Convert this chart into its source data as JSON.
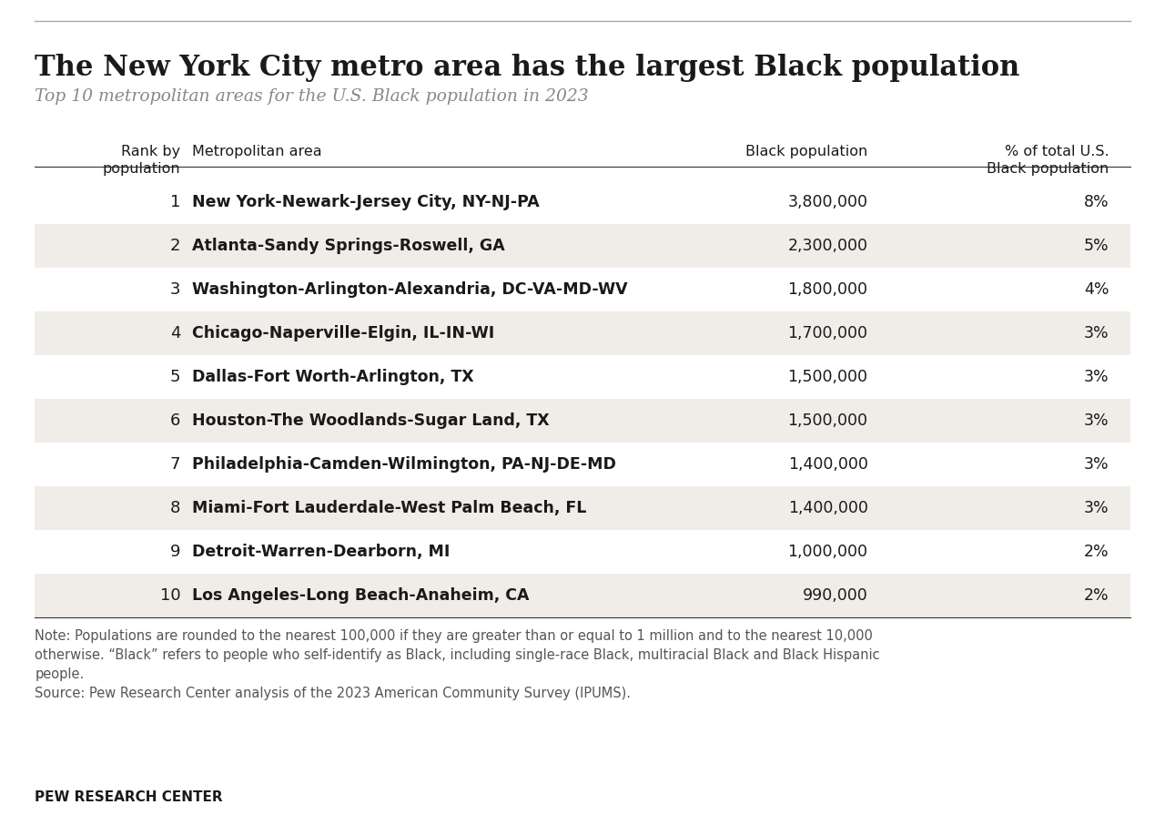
{
  "title": "The New York City metro area has the largest Black population",
  "subtitle": "Top 10 metropolitan areas for the U.S. Black population in 2023",
  "col_headers": {
    "rank": "Rank by\npopulation",
    "metro": "Metropolitan area",
    "pop": "Black population",
    "pct": "% of total U.S.\nBlack population"
  },
  "rows": [
    {
      "rank": 1,
      "metro": "New York-Newark-Jersey City, NY-NJ-PA",
      "pop": "3,800,000",
      "pct": "8%",
      "shaded": false
    },
    {
      "rank": 2,
      "metro": "Atlanta-Sandy Springs-Roswell, GA",
      "pop": "2,300,000",
      "pct": "5%",
      "shaded": true
    },
    {
      "rank": 3,
      "metro": "Washington-Arlington-Alexandria, DC-VA-MD-WV",
      "pop": "1,800,000",
      "pct": "4%",
      "shaded": false
    },
    {
      "rank": 4,
      "metro": "Chicago-Naperville-Elgin, IL-IN-WI",
      "pop": "1,700,000",
      "pct": "3%",
      "shaded": true
    },
    {
      "rank": 5,
      "metro": "Dallas-Fort Worth-Arlington, TX",
      "pop": "1,500,000",
      "pct": "3%",
      "shaded": false
    },
    {
      "rank": 6,
      "metro": "Houston-The Woodlands-Sugar Land, TX",
      "pop": "1,500,000",
      "pct": "3%",
      "shaded": true
    },
    {
      "rank": 7,
      "metro": "Philadelphia-Camden-Wilmington, PA-NJ-DE-MD",
      "pop": "1,400,000",
      "pct": "3%",
      "shaded": false
    },
    {
      "rank": 8,
      "metro": "Miami-Fort Lauderdale-West Palm Beach, FL",
      "pop": "1,400,000",
      "pct": "3%",
      "shaded": true
    },
    {
      "rank": 9,
      "metro": "Detroit-Warren-Dearborn, MI",
      "pop": "1,000,000",
      "pct": "2%",
      "shaded": false
    },
    {
      "rank": 10,
      "metro": "Los Angeles-Long Beach-Anaheim, CA",
      "pop": "990,000",
      "pct": "2%",
      "shaded": true
    }
  ],
  "note": "Note: Populations are rounded to the nearest 100,000 if they are greater than or equal to 1 million and to the nearest 10,000\notherwise. “Black” refers to people who self-identify as Black, including single-race Black, multiracial Black and Black Hispanic\npeople.\nSource: Pew Research Center analysis of the 2023 American Community Survey (IPUMS).",
  "footer": "PEW RESEARCH CENTER",
  "bg_color": "#ffffff",
  "shaded_color": "#f0ede8",
  "header_line_color": "#333333",
  "top_line_color": "#aaaaaa",
  "title_color": "#1a1a1a",
  "subtitle_color": "#888888",
  "text_color": "#1a1a1a",
  "note_color": "#555555",
  "footer_color": "#1a1a1a"
}
